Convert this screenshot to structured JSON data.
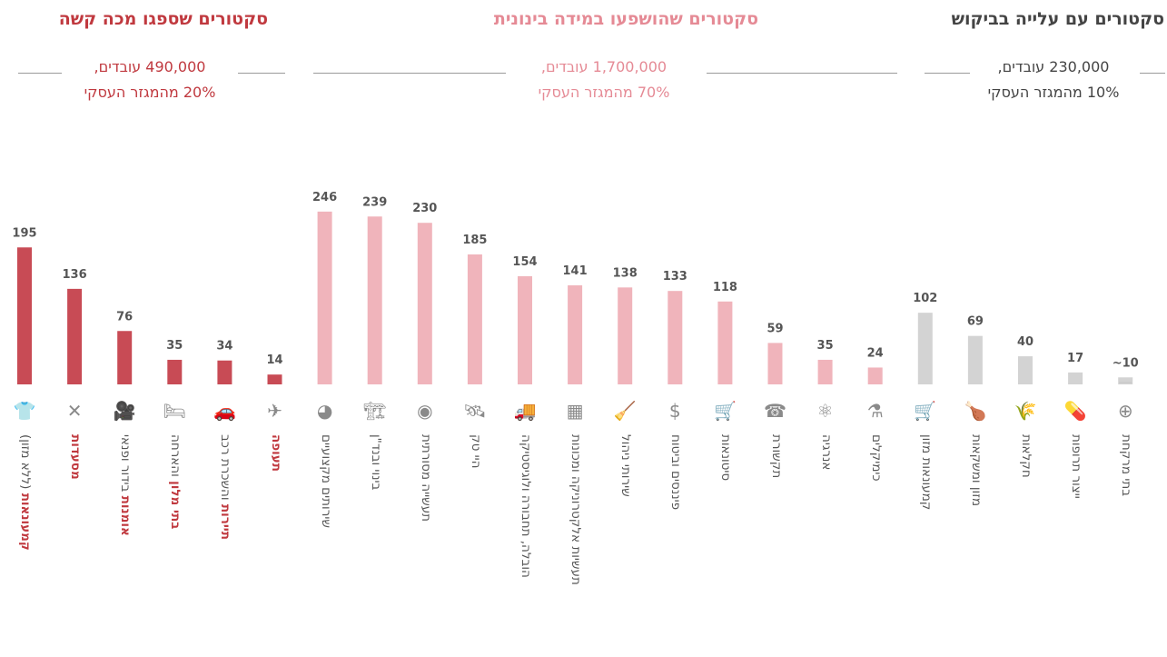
{
  "groups": {
    "hard": {
      "title": "סקטורים שספגו מכה קשה",
      "workers": "490,000 עובדים,",
      "share": "20% מהמגזר העסקי"
    },
    "medium": {
      "title": "סקטורים שהושפעו במידה בינונית",
      "workers": "1,700,000 עובדים,",
      "share": "70% מהמגזר העסקי"
    },
    "rising": {
      "title": "סקטורים עם עלייה בביקוש",
      "workers": "230,000 עובדים,",
      "share": "10% מהמגזר העסקי"
    }
  },
  "colors": {
    "hard": "#c84b55",
    "medium": "#f0b4bb",
    "rising": "#d3d3d3",
    "hard_text": "#c0393f",
    "medium_text": "#e58a95",
    "value_text": "#555555",
    "label_text": "#555555",
    "icon": "#8a8a8a"
  },
  "chart_data": {
    "type": "bar",
    "value_axis": "not printed",
    "categories": [
      "קמעונאות (ללא מזון)",
      "מסעדות",
      "אומנות בידור ופנאי",
      "בתי מלון והארחה",
      "תיירות והשכרת רכב",
      "תעופה",
      "שירותים מקצועיים",
      "בינוי ובנד\"ן",
      "תעשייה מסורתית",
      "היי טק",
      "הובלה, תחבורה ולוגיסטיקה",
      "תעשיות אלקטרוניקה ומכונות",
      "שירותי ניהול",
      "פיננסים וביטוח",
      "סיטונאות",
      "תקשורת",
      "אנרגיה",
      "כימיקלים",
      "קמעונאות מזון",
      "מזון ומשקאות",
      "חקלאות",
      "ייצור תרופות",
      "בתי מרקחת"
    ],
    "values": [
      195,
      136,
      76,
      35,
      34,
      14,
      246,
      239,
      230,
      185,
      154,
      141,
      138,
      133,
      118,
      59,
      35,
      24,
      102,
      69,
      40,
      17,
      10
    ],
    "value_labels": [
      "195",
      "136",
      "76",
      "35",
      "34",
      "14",
      "246",
      "239",
      "230",
      "185",
      "154",
      "141",
      "138",
      "133",
      "118",
      "59",
      "35",
      "24",
      "102",
      "69",
      "40",
      "17",
      "~10"
    ],
    "group": [
      "hard",
      "hard",
      "hard",
      "hard",
      "hard",
      "hard",
      "medium",
      "medium",
      "medium",
      "medium",
      "medium",
      "medium",
      "medium",
      "medium",
      "medium",
      "medium",
      "medium",
      "medium",
      "rising",
      "rising",
      "rising",
      "rising",
      "rising"
    ],
    "label_bold": [
      "קמעונאות",
      "מסעדות",
      "אומנות",
      "בתי מלון",
      "תיירות",
      "תעופה",
      "",
      "",
      "",
      "",
      "",
      "",
      "",
      "",
      "",
      "",
      "",
      "",
      "",
      "",
      "",
      "",
      ""
    ],
    "label_rest": [
      " (ללא מזון)",
      "",
      " בידור ופנאי",
      " והארחה",
      " והשכרת רכב",
      "",
      "שירותים מקצועיים",
      "בינוי ובנד\"ן",
      "תעשייה מסורתית",
      "היי טק",
      "הובלה, תחבורה ולוגיסטיקה",
      "תעשיות אלקטרוניקה ומכונות",
      "שירותי ניהול",
      "פיננסים וביטוח",
      "סיטונאות",
      "תקשורת",
      "אנרגיה",
      "כימיקלים",
      "קמעונאות מזון",
      "מזון ומשקאות",
      "חקלאות",
      "ייצור תרופות",
      "בתי מרקחת"
    ],
    "icons": [
      "shirt-icon",
      "fork-knife-icon",
      "camera-icon",
      "bed-icon",
      "car-icon",
      "plane-icon",
      "pie-chart-icon",
      "crane-icon",
      "disc-icon",
      "satellite-icon",
      "truck-icon",
      "chip-icon",
      "cleaning-icon",
      "dollar-icon",
      "hand-truck-icon",
      "phone-icon",
      "atom-icon",
      "flask-icon",
      "cart-icon",
      "drumstick-icon",
      "wheat-icon",
      "pill-bottle-icon",
      "medical-cross-icon"
    ],
    "icon_glyphs": [
      "👕",
      "✕",
      "🎥",
      "🛏",
      "🚗",
      "✈",
      "◕",
      "🏗",
      "◉",
      "🛰",
      "🚚",
      "▦",
      "🧹",
      "$",
      "🛒",
      "☎",
      "⚛",
      "⚗",
      "🛒",
      "🍗",
      "🌾",
      "💊",
      "⊕"
    ]
  }
}
